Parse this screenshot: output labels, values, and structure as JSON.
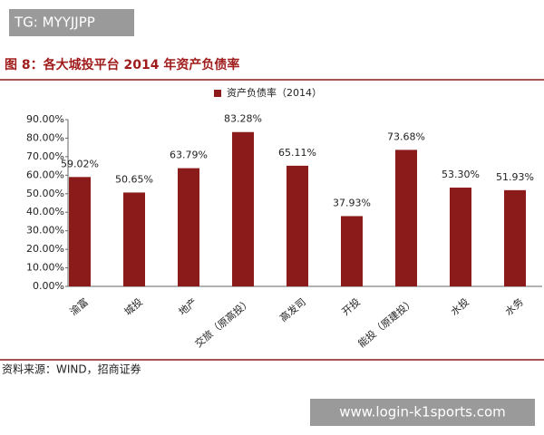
{
  "overlays": {
    "top_left": "TG: MYYJJPP",
    "bottom_right": "www.login-k1sports.com"
  },
  "chart_data": {
    "type": "bar",
    "title": "图 8：各大城投平台 2014 年资产负债率",
    "source": "资料来源：WIND，招商证券",
    "categories": [
      "渝富",
      "城投",
      "地产",
      "交旅（原高投）",
      "高发司",
      "开投",
      "能投（原建投）",
      "水投",
      "水务"
    ],
    "series": [
      {
        "name": "资产负债率（2014）",
        "color": "#8b1a1a",
        "values": [
          59.02,
          50.65,
          63.79,
          83.28,
          65.11,
          37.93,
          73.68,
          53.3,
          51.93
        ],
        "value_labels": [
          "59.02%",
          "50.65%",
          "63.79%",
          "83.28%",
          "65.11%",
          "37.93%",
          "73.68%",
          "53.30%",
          "51.93%"
        ]
      }
    ],
    "ylim": [
      0,
      90
    ],
    "yticks": [
      {
        "value": 0,
        "label": "0.00%"
      },
      {
        "value": 10,
        "label": "10.00%"
      },
      {
        "value": 20,
        "label": "20.00%"
      },
      {
        "value": 30,
        "label": "30.00%"
      },
      {
        "value": 40,
        "label": "40.00%"
      },
      {
        "value": 50,
        "label": "50.00%"
      },
      {
        "value": 60,
        "label": "60.00%"
      },
      {
        "value": 70,
        "label": "70.00%"
      },
      {
        "value": 80,
        "label": "80.00%"
      },
      {
        "value": 90,
        "label": "90.00%"
      }
    ],
    "grid": false
  }
}
